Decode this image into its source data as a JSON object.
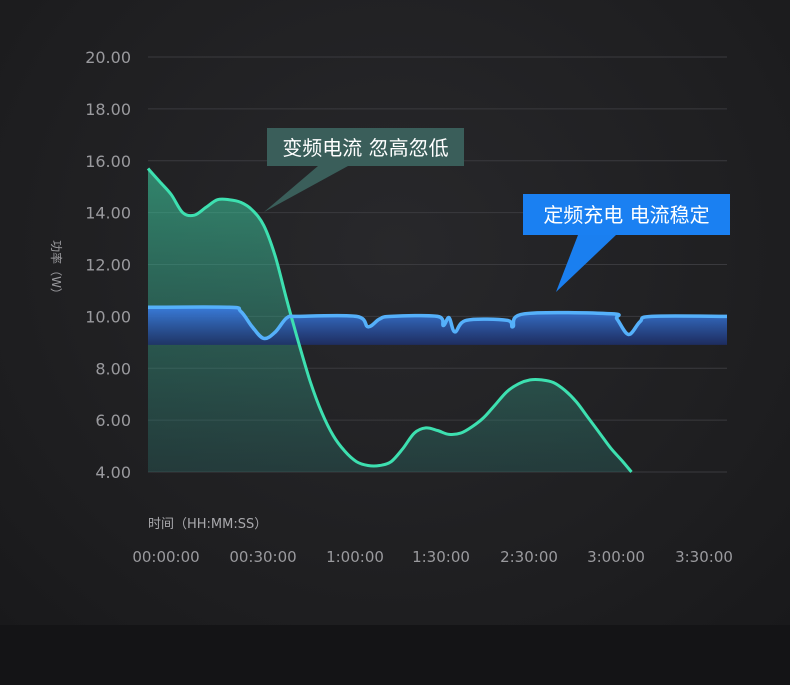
{
  "chart_data": {
    "type": "area",
    "ylabel": "功率（W）",
    "xlabel": "时间（HH:MM:SS）",
    "ylim": [
      4,
      20
    ],
    "yticks": [
      "20.00",
      "18.00",
      "16.00",
      "14.00",
      "12.00",
      "10.00",
      "8.00",
      "6.00",
      "4.00"
    ],
    "ytick_values": [
      20,
      18,
      16,
      14,
      12,
      10,
      8,
      6,
      4
    ],
    "xticks": [
      "00:00:00",
      "00:30:00",
      "1:00:00",
      "1:30:00",
      "2:30:00",
      "3:00:00",
      "3:30:00"
    ],
    "grid": true,
    "series": [
      {
        "name": "变频电流 忽高忽低",
        "color": "#3de0b0",
        "points": [
          [
            0,
            15.7
          ],
          [
            0.02,
            15.2
          ],
          [
            0.04,
            14.7
          ],
          [
            0.06,
            14.0
          ],
          [
            0.08,
            13.9
          ],
          [
            0.1,
            14.2
          ],
          [
            0.12,
            14.5
          ],
          [
            0.14,
            14.5
          ],
          [
            0.16,
            14.4
          ],
          [
            0.18,
            14.1
          ],
          [
            0.2,
            13.5
          ],
          [
            0.22,
            12.3
          ],
          [
            0.24,
            10.6
          ],
          [
            0.26,
            9.0
          ],
          [
            0.28,
            7.5
          ],
          [
            0.3,
            6.3
          ],
          [
            0.32,
            5.4
          ],
          [
            0.34,
            4.8
          ],
          [
            0.36,
            4.4
          ],
          [
            0.38,
            4.25
          ],
          [
            0.4,
            4.25
          ],
          [
            0.42,
            4.4
          ],
          [
            0.44,
            4.9
          ],
          [
            0.46,
            5.5
          ],
          [
            0.48,
            5.7
          ],
          [
            0.5,
            5.6
          ],
          [
            0.52,
            5.45
          ],
          [
            0.54,
            5.5
          ],
          [
            0.56,
            5.75
          ],
          [
            0.58,
            6.1
          ],
          [
            0.6,
            6.6
          ],
          [
            0.62,
            7.1
          ],
          [
            0.64,
            7.4
          ],
          [
            0.66,
            7.55
          ],
          [
            0.68,
            7.55
          ],
          [
            0.7,
            7.45
          ],
          [
            0.72,
            7.15
          ],
          [
            0.74,
            6.7
          ],
          [
            0.76,
            6.1
          ],
          [
            0.78,
            5.5
          ],
          [
            0.8,
            4.9
          ],
          [
            0.82,
            4.4
          ],
          [
            0.835,
            4.0
          ]
        ]
      },
      {
        "name": "定频充电 电流稳定",
        "color": "#4ea8f5",
        "points": [
          [
            0,
            10.35
          ],
          [
            0.14,
            10.35
          ],
          [
            0.16,
            10.2
          ],
          [
            0.18,
            9.6
          ],
          [
            0.2,
            9.15
          ],
          [
            0.22,
            9.4
          ],
          [
            0.24,
            9.95
          ],
          [
            0.26,
            10.0
          ],
          [
            0.36,
            10.0
          ],
          [
            0.38,
            9.6
          ],
          [
            0.4,
            9.9
          ],
          [
            0.42,
            10.0
          ],
          [
            0.5,
            10.0
          ],
          [
            0.51,
            9.65
          ],
          [
            0.52,
            9.95
          ],
          [
            0.53,
            9.4
          ],
          [
            0.55,
            9.85
          ],
          [
            0.62,
            9.85
          ],
          [
            0.63,
            9.6
          ],
          [
            0.65,
            10.1
          ],
          [
            0.8,
            10.1
          ],
          [
            0.81,
            9.9
          ],
          [
            0.83,
            9.3
          ],
          [
            0.85,
            9.8
          ],
          [
            0.87,
            10.0
          ],
          [
            1.0,
            10.0
          ]
        ]
      }
    ]
  },
  "callouts": {
    "variable": "变频电流 忽高忽低",
    "fixed": "定频充电 电流稳定"
  }
}
